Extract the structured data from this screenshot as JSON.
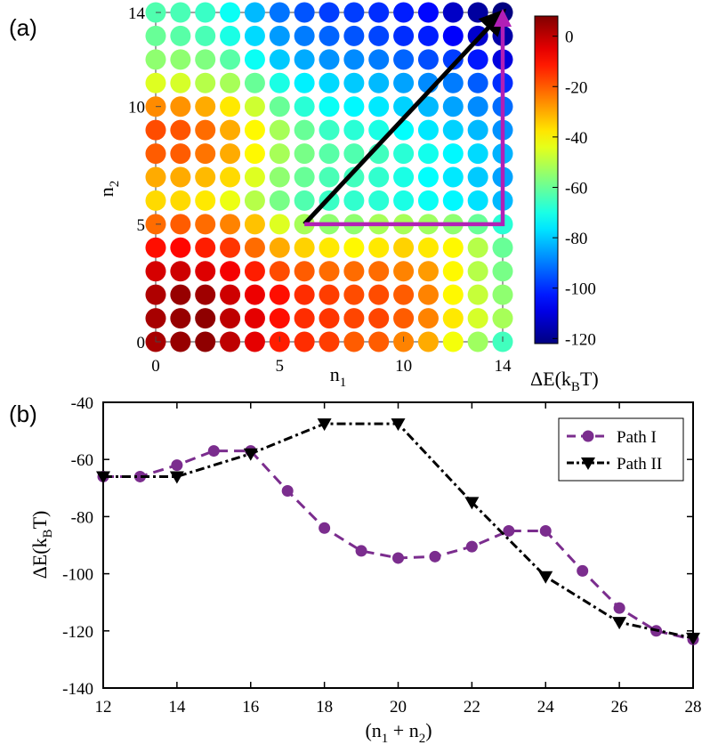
{
  "figure": {
    "panel_a_label": "(a)",
    "panel_b_label": "(b)"
  },
  "chart_data": [
    {
      "type": "heatmap",
      "title": "",
      "xlabel_main": "n",
      "xlabel_sub": "1",
      "ylabel_main": "n",
      "ylabel_sub": "2",
      "x_ticks": [
        0,
        5,
        10,
        14
      ],
      "y_ticks": [
        0,
        5,
        10,
        14
      ],
      "xlim": [
        0,
        14
      ],
      "ylim": [
        0,
        14
      ],
      "colorbar": {
        "label_pre": "ΔE(k",
        "label_sub": "B",
        "label_post": "T)",
        "min": -122,
        "max": 8,
        "ticks": [
          0,
          -20,
          -40,
          -60,
          -80,
          -100,
          -120
        ]
      },
      "grid_values_top_to_bottom": [
        [
          -63,
          -64,
          -66,
          -72,
          -82,
          -91,
          -95,
          -98,
          -98,
          -100,
          -102,
          -105,
          -113,
          -118,
          -122
        ],
        [
          -60,
          -62,
          -64,
          -70,
          -78,
          -86,
          -90,
          -93,
          -95,
          -97,
          -100,
          -102,
          -106,
          -112,
          -117
        ],
        [
          -55,
          -55,
          -57,
          -62,
          -72,
          -80,
          -84,
          -87,
          -88,
          -90,
          -93,
          -96,
          -98,
          -103,
          -110
        ],
        [
          -45,
          -46,
          -50,
          -52,
          -60,
          -70,
          -75,
          -78,
          -80,
          -82,
          -85,
          -88,
          -90,
          -94,
          -100
        ],
        [
          -26,
          -27,
          -30,
          -38,
          -47,
          -60,
          -68,
          -72,
          -74,
          -76,
          -79,
          -82,
          -85,
          -88,
          -92
        ],
        [
          -18,
          -19,
          -22,
          -30,
          -40,
          -52,
          -60,
          -66,
          -68,
          -70,
          -73,
          -76,
          -79,
          -82,
          -87
        ],
        [
          -20,
          -20,
          -23,
          -30,
          -40,
          -52,
          -58,
          -62,
          -63,
          -65,
          -68,
          -71,
          -74,
          -78,
          -83
        ],
        [
          -30,
          -30,
          -32,
          -36,
          -45,
          -55,
          -60,
          -64,
          -65,
          -67,
          -70,
          -73,
          -76,
          -80,
          -85
        ],
        [
          -36,
          -36,
          -38,
          -43,
          -50,
          -58,
          -63,
          -66,
          -67,
          -68,
          -70,
          -72,
          -74,
          -77,
          -82
        ],
        [
          -22,
          -20,
          -22,
          -25,
          -33,
          -45,
          -52,
          -55,
          -55,
          -52,
          -52,
          -53,
          -55,
          -60,
          -68
        ],
        [
          -10,
          -9,
          -12,
          -15,
          -22,
          -30,
          -35,
          -38,
          -40,
          -38,
          -35,
          -38,
          -40,
          -50,
          -60
        ],
        [
          -3,
          -2,
          -4,
          -7,
          -12,
          -18,
          -20,
          -22,
          -22,
          -22,
          -25,
          -28,
          -40,
          -50,
          -58
        ],
        [
          2,
          5,
          4,
          -2,
          -6,
          -10,
          -14,
          -16,
          -18,
          -18,
          -20,
          -25,
          -40,
          -48,
          -55
        ],
        [
          3,
          5,
          6,
          0,
          -5,
          -10,
          -14,
          -15,
          -17,
          -17,
          -20,
          -25,
          -38,
          -46,
          -52
        ],
        [
          3,
          5,
          6,
          0,
          -5,
          -12,
          -14,
          -16,
          -20,
          -20,
          -25,
          -30,
          -42,
          -53,
          -65
        ]
      ],
      "paths": [
        {
          "name": "black arrow",
          "color": "#000000",
          "points": [
            [
              6,
              5
            ],
            [
              14,
              14
            ]
          ]
        },
        {
          "name": "magenta path",
          "color": "#b21fb6",
          "points": [
            [
              6,
              5
            ],
            [
              14,
              5
            ],
            [
              14,
              14
            ]
          ]
        }
      ]
    },
    {
      "type": "line",
      "xlabel_pre": "(n",
      "xlabel_sub1": "1",
      "xlabel_mid": " + n",
      "xlabel_sub2": "2",
      "xlabel_post": ")",
      "ylabel_pre": "ΔE(k",
      "ylabel_sub": "B",
      "ylabel_post": "T)",
      "xlim": [
        12,
        28
      ],
      "ylim": [
        -140,
        -40
      ],
      "x_ticks": [
        12,
        14,
        16,
        18,
        20,
        22,
        24,
        26,
        28
      ],
      "y_ticks": [
        -40,
        -60,
        -80,
        -100,
        -120,
        -140
      ],
      "legend_position": "top-right",
      "series": [
        {
          "name": "Path I",
          "color": "#7b2d8e",
          "marker": "circle",
          "x": [
            12,
            13,
            14,
            15,
            16,
            17,
            18,
            19,
            20,
            21,
            22,
            23,
            24,
            25,
            26,
            27,
            28
          ],
          "y": [
            -66,
            -66,
            -62,
            -57,
            -57,
            -71,
            -84,
            -92,
            -94.5,
            -94,
            -90.5,
            -85,
            -85,
            -99,
            -112,
            -120,
            -123
          ]
        },
        {
          "name": "Path II",
          "color": "#000000",
          "marker": "triangle-down",
          "x": [
            12,
            14,
            16,
            18,
            20,
            22,
            24,
            26,
            28
          ],
          "y": [
            -66,
            -66,
            -58,
            -47.5,
            -47.5,
            -75,
            -101,
            -117,
            -122.5
          ]
        }
      ]
    }
  ]
}
